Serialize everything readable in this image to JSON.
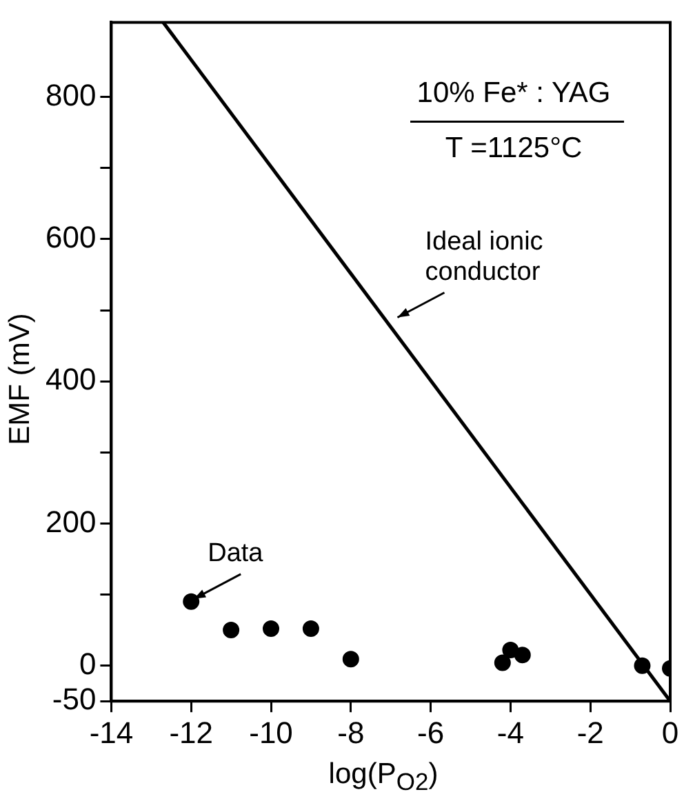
{
  "chart_data": {
    "type": "scatter",
    "xlabel": "log(P$_{O2}$)",
    "ylabel": "EMF (mV)",
    "annotations": [
      "10% Fe* : YAG",
      "T =1125°C",
      {
        "text": "Ideal ionic conductor",
        "x": -6.9,
        "y": 486
      },
      {
        "text": "Data",
        "x": -12,
        "y": 90
      }
    ],
    "series": [
      {
        "type": "line",
        "color": "#000000",
        "x": [
          -12.7,
          0
        ],
        "values": [
          905,
          -50
        ],
        "marker": "none",
        "line_style": "solid"
      },
      {
        "color": "#000000",
        "marker": "circle",
        "x": [
          -12,
          -11,
          -10,
          -9,
          -8,
          -4.2,
          -4,
          -3.7,
          -0.7,
          0
        ],
        "values": [
          90,
          50,
          52,
          52,
          9,
          4,
          22,
          15,
          0,
          -4
        ]
      }
    ],
    "xlim": [
      -14,
      0
    ],
    "ylim": [
      -50,
      905
    ],
    "xticks": [
      -14,
      -12,
      -10,
      -8,
      -6,
      -4,
      -2,
      0
    ],
    "yticks": [
      -50,
      0,
      {
        "value": 100,
        "label": null
      },
      200,
      {
        "value": 300,
        "label": null
      },
      400,
      {
        "value": 500,
        "label": null
      },
      600,
      {
        "value": 700,
        "label": null
      },
      800
    ],
    "grid": false,
    "legend": false
  }
}
